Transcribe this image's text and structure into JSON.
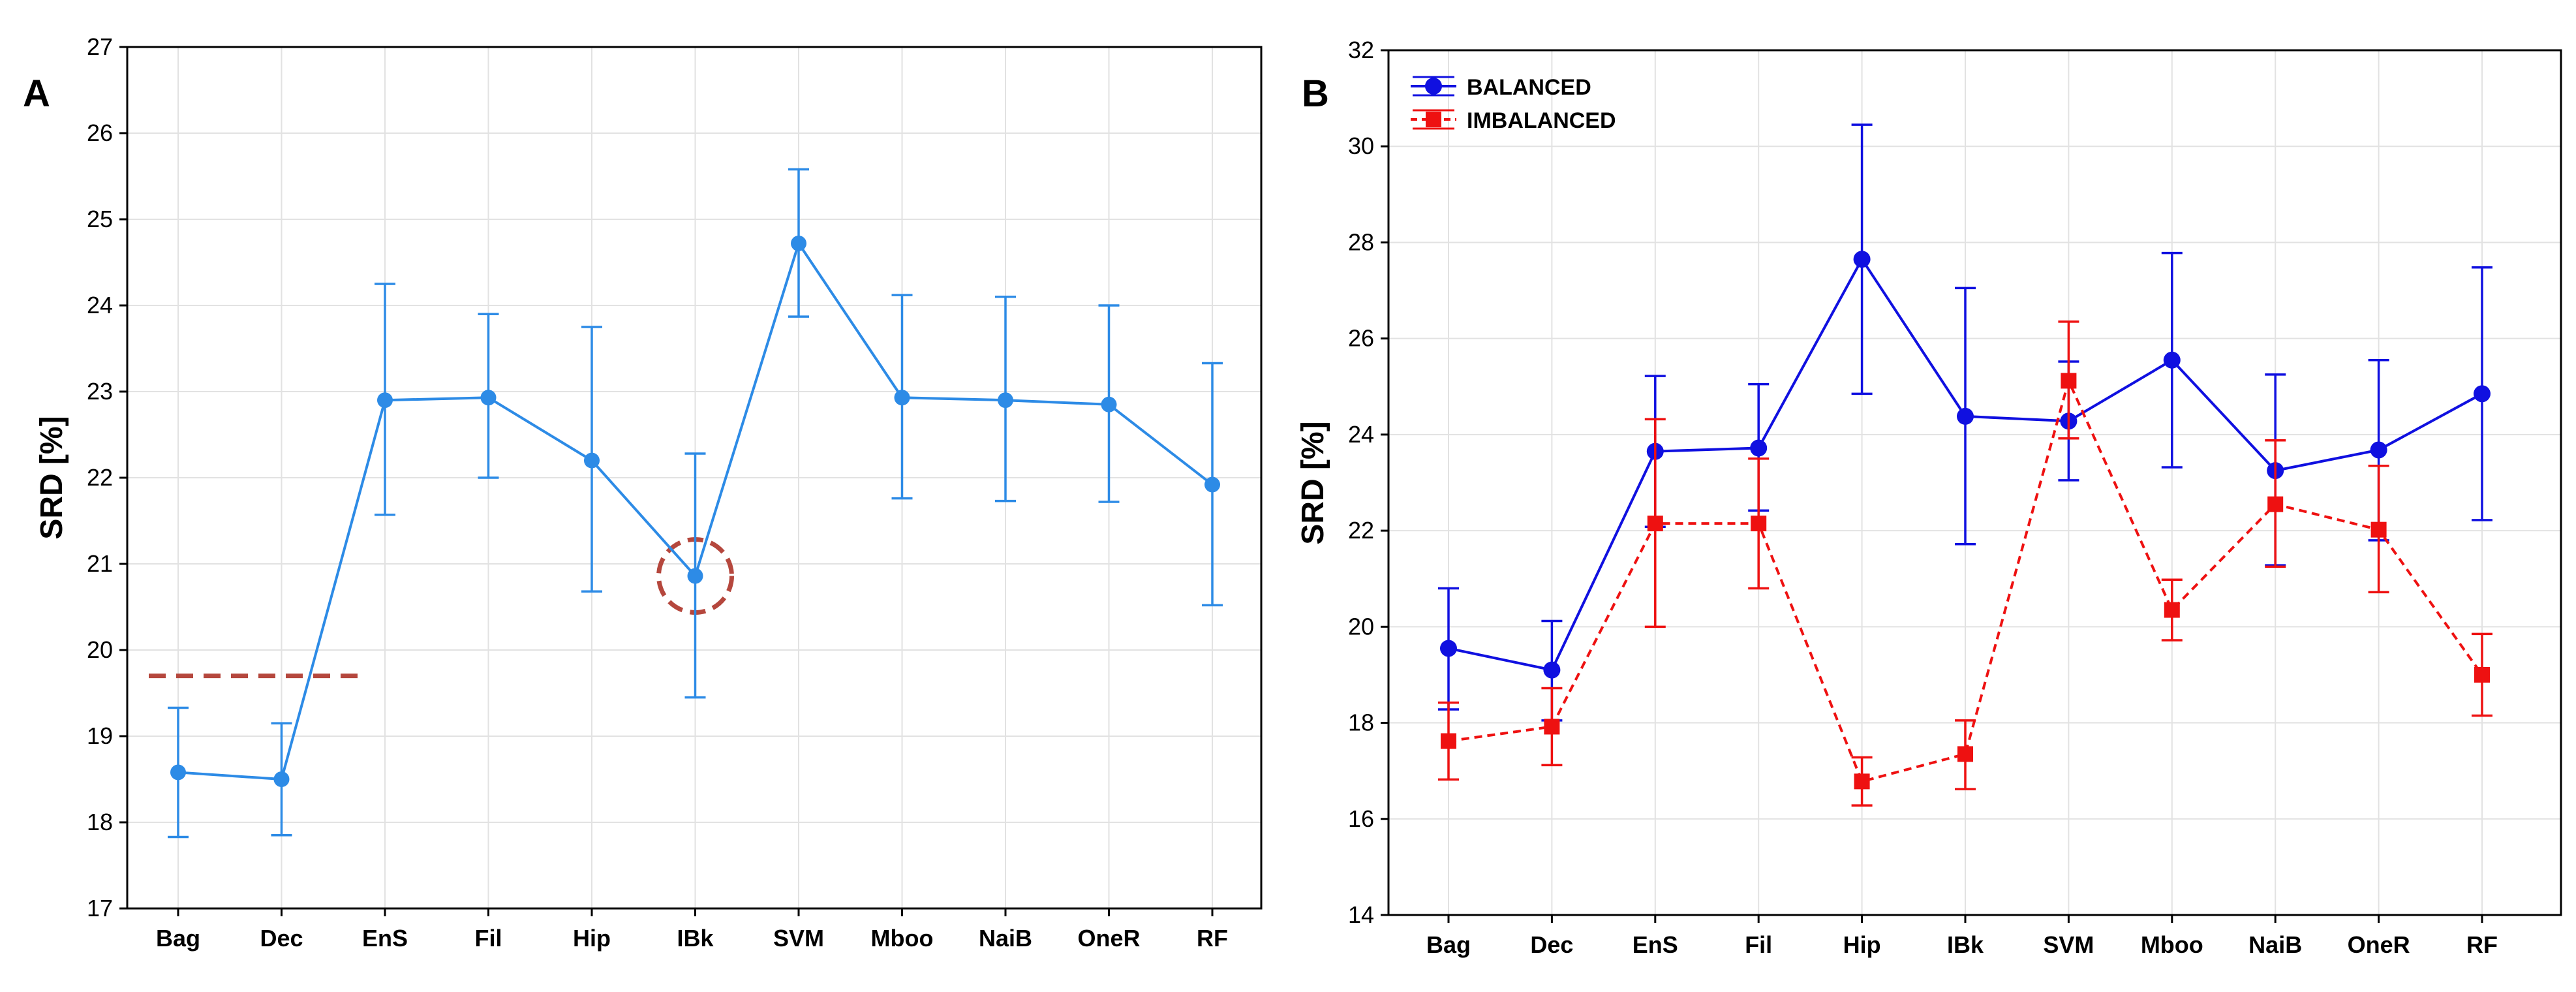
{
  "chart_data": [
    {
      "type": "line",
      "panel_label": "A",
      "title": "",
      "xlabel": "",
      "ylabel": "SRD [%]",
      "ylim": [
        17,
        27
      ],
      "yticks": [
        17,
        18,
        19,
        20,
        21,
        22,
        23,
        24,
        25,
        26,
        27
      ],
      "grid": true,
      "categories": [
        "Bag",
        "Dec",
        "EnS",
        "Fil",
        "Hip",
        "IBk",
        "SVM",
        "Mboo",
        "NaiB",
        "OneR",
        "RF"
      ],
      "series": [
        {
          "name": "SRD",
          "color": "#2d8be6",
          "values": [
            18.58,
            18.5,
            22.9,
            22.93,
            22.2,
            20.86,
            24.72,
            22.93,
            22.9,
            22.85,
            21.92
          ],
          "err_low": [
            17.83,
            17.85,
            21.57,
            22.0,
            20.68,
            19.45,
            23.87,
            21.76,
            21.73,
            21.72,
            20.52
          ],
          "err_high": [
            19.33,
            19.15,
            24.25,
            23.9,
            23.75,
            22.28,
            25.58,
            24.12,
            24.1,
            24.0,
            23.33
          ]
        }
      ],
      "annotations": {
        "reference_line": {
          "y": 19.7,
          "from_category": "Bag",
          "to_category": "EnS",
          "color": "#b5473d",
          "style": "dashed"
        },
        "circle": {
          "category": "IBk",
          "y": 20.86,
          "color": "#b5473d",
          "style": "dashed"
        }
      }
    },
    {
      "type": "line",
      "panel_label": "B",
      "title": "",
      "xlabel": "",
      "ylabel": "SRD [%]",
      "ylim": [
        14,
        32
      ],
      "yticks": [
        14,
        16,
        18,
        20,
        22,
        24,
        26,
        28,
        30,
        32
      ],
      "grid": true,
      "legend_position": "top-left",
      "categories": [
        "Bag",
        "Dec",
        "EnS",
        "Fil",
        "Hip",
        "IBk",
        "SVM",
        "Mboo",
        "NaiB",
        "OneR",
        "RF"
      ],
      "series": [
        {
          "name": "BALANCED",
          "color": "#1010e0",
          "marker": "circle",
          "line_style": "solid",
          "values": [
            19.55,
            19.1,
            23.65,
            23.72,
            27.65,
            24.38,
            24.28,
            25.55,
            23.25,
            23.68,
            24.85
          ],
          "err_low": [
            18.28,
            18.05,
            22.08,
            22.42,
            24.85,
            21.72,
            23.05,
            23.32,
            21.28,
            21.8,
            22.22
          ],
          "err_high": [
            20.8,
            20.12,
            25.22,
            25.05,
            30.45,
            27.05,
            25.52,
            27.78,
            25.25,
            25.55,
            27.48
          ]
        },
        {
          "name": "IMBALANCED",
          "color": "#ee1111",
          "marker": "square",
          "line_style": "dashed",
          "values": [
            17.62,
            17.92,
            22.15,
            22.15,
            16.78,
            17.35,
            25.12,
            20.35,
            22.55,
            22.02,
            19.0
          ],
          "err_low": [
            16.82,
            17.12,
            20.0,
            20.8,
            16.28,
            16.62,
            23.92,
            19.72,
            21.25,
            20.72,
            18.15
          ],
          "err_high": [
            18.42,
            18.72,
            24.32,
            23.5,
            17.28,
            18.05,
            26.35,
            20.98,
            23.88,
            23.35,
            19.85
          ]
        }
      ]
    }
  ]
}
